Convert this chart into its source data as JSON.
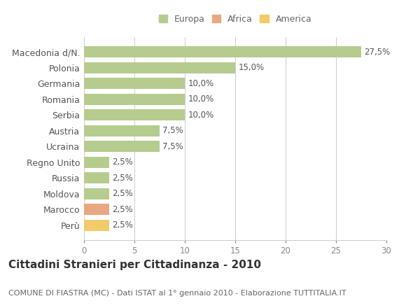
{
  "categories": [
    "Macedonia d/N.",
    "Polonia",
    "Germania",
    "Romania",
    "Serbia",
    "Austria",
    "Ucraina",
    "Regno Unito",
    "Russia",
    "Moldova",
    "Marocco",
    "Perù"
  ],
  "values": [
    27.5,
    15.0,
    10.0,
    10.0,
    10.0,
    7.5,
    7.5,
    2.5,
    2.5,
    2.5,
    2.5,
    2.5
  ],
  "colors": [
    "#b5cc8e",
    "#b5cc8e",
    "#b5cc8e",
    "#b5cc8e",
    "#b5cc8e",
    "#b5cc8e",
    "#b5cc8e",
    "#b5cc8e",
    "#b5cc8e",
    "#b5cc8e",
    "#e8a882",
    "#f2cc6b"
  ],
  "labels": [
    "27,5%",
    "15,0%",
    "10,0%",
    "10,0%",
    "10,0%",
    "7,5%",
    "7,5%",
    "2,5%",
    "2,5%",
    "2,5%",
    "2,5%",
    "2,5%"
  ],
  "xlim": [
    0,
    30
  ],
  "xticks": [
    0,
    5,
    10,
    15,
    20,
    25,
    30
  ],
  "legend": [
    {
      "label": "Europa",
      "color": "#b5cc8e"
    },
    {
      "label": "Africa",
      "color": "#e8a882"
    },
    {
      "label": "America",
      "color": "#f2cc6b"
    }
  ],
  "title": "Cittadini Stranieri per Cittadinanza - 2010",
  "subtitle": "COMUNE DI FIASTRA (MC) - Dati ISTAT al 1° gennaio 2010 - Elaborazione TUTTITALIA.IT",
  "bg_color": "#ffffff",
  "grid_color": "#cccccc",
  "bar_height": 0.72,
  "label_fontsize": 8.5,
  "ytick_fontsize": 9,
  "xtick_fontsize": 8.5,
  "title_fontsize": 11,
  "subtitle_fontsize": 8,
  "legend_fontsize": 9
}
